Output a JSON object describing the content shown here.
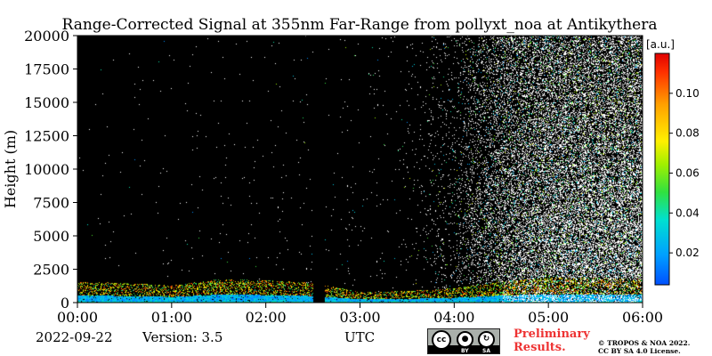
{
  "chart_data": {
    "type": "heatmap",
    "title": "Range-Corrected Signal at 355nm Far-Range from pollyxt_noa at Antikythera",
    "xlabel": "",
    "ylabel": "Height (m)",
    "x_unit_label": "UTC",
    "x_ticks": [
      "00:00",
      "01:00",
      "02:00",
      "03:00",
      "04:00",
      "05:00",
      "06:00"
    ],
    "x_range_hours": [
      0,
      6
    ],
    "y_ticks": [
      0,
      2500,
      5000,
      7500,
      10000,
      12500,
      15000,
      17500,
      20000
    ],
    "ylim": [
      0,
      20000
    ],
    "colorbar": {
      "label": "[a.u.]",
      "range": [
        0.004,
        0.12
      ],
      "ticks": [
        0.02,
        0.04,
        0.06,
        0.08,
        0.1
      ],
      "tick_labels": [
        "0.02",
        "0.04",
        "0.06",
        "0.08",
        "0.10"
      ],
      "colormap": "jet"
    },
    "background_color": "#000000",
    "no_data_gap_hours": [
      2.5,
      2.62
    ],
    "boundary_layer_top_m": [
      [
        0.0,
        1600
      ],
      [
        0.5,
        1500
      ],
      [
        1.0,
        1300
      ],
      [
        1.5,
        1800
      ],
      [
        2.0,
        1700
      ],
      [
        2.5,
        1500
      ],
      [
        3.0,
        800
      ],
      [
        3.5,
        900
      ],
      [
        4.0,
        1100
      ],
      [
        4.5,
        1600
      ],
      [
        5.0,
        1900
      ],
      [
        5.5,
        1900
      ],
      [
        6.0,
        1800
      ]
    ],
    "noise_density_by_hour": [
      [
        0.0,
        0.002
      ],
      [
        2.0,
        0.004
      ],
      [
        3.5,
        0.01
      ],
      [
        4.0,
        0.06
      ],
      [
        4.5,
        0.3
      ],
      [
        5.0,
        0.45
      ],
      [
        6.0,
        0.5
      ]
    ]
  },
  "footer": {
    "date": "2022-09-22",
    "version": "Version: 3.5",
    "utc": "UTC",
    "preliminary_line1": "Preliminary",
    "preliminary_line2": "Results.",
    "copyright_line1": "© TROPOS & NOA 2022.",
    "copyright_line2": "CC BY SA 4.0 License.",
    "cc_icon_text": "cc",
    "by_label": "BY",
    "sa_label": "SA"
  }
}
